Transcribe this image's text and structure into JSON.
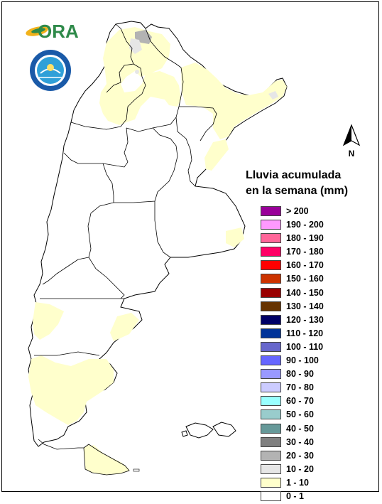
{
  "logos": {
    "ora_text": "ORA",
    "smn_emblem": "smn-emblem",
    "ora_icon": "ora-leaf-icon"
  },
  "north_arrow": {
    "label": "N"
  },
  "legend": {
    "title_line1": "Lluvia acumulada",
    "title_line2": "en la semana (mm)",
    "items": [
      {
        "label": "> 200",
        "color": "#990099"
      },
      {
        "label": "190 - 200",
        "color": "#ff99ff"
      },
      {
        "label": "180 - 190",
        "color": "#ff6699"
      },
      {
        "label": "170 - 180",
        "color": "#ff0066"
      },
      {
        "label": "160 - 170",
        "color": "#ff0000"
      },
      {
        "label": "150 - 160",
        "color": "#cc3300"
      },
      {
        "label": "140 - 150",
        "color": "#990000"
      },
      {
        "label": "130 - 140",
        "color": "#663300"
      },
      {
        "label": "120 - 130",
        "color": "#000066"
      },
      {
        "label": "110 - 120",
        "color": "#003399"
      },
      {
        "label": "100 - 110",
        "color": "#6666cc"
      },
      {
        "label": "90 - 100",
        "color": "#6666ff"
      },
      {
        "label": "80 - 90",
        "color": "#9999ff"
      },
      {
        "label": "70 - 80",
        "color": "#ccccff"
      },
      {
        "label": "60 - 70",
        "color": "#99ffff"
      },
      {
        "label": "50 - 60",
        "color": "#99cccc"
      },
      {
        "label": "40 - 50",
        "color": "#669999"
      },
      {
        "label": "30 - 40",
        "color": "#808080"
      },
      {
        "label": "20 - 30",
        "color": "#b3b3b3"
      },
      {
        "label": "10 - 20",
        "color": "#e6e6e6"
      },
      {
        "label": "1 - 10",
        "color": "#ffffcc"
      },
      {
        "label": "0 - 1",
        "color": "#ffffff"
      }
    ]
  },
  "map_fills": {
    "light_rain": "#ffffcc",
    "moderate_rain": "#e6e6e6",
    "heavier_rain": "#b3b3b3",
    "no_rain": "#ffffff",
    "border": "#000000"
  }
}
